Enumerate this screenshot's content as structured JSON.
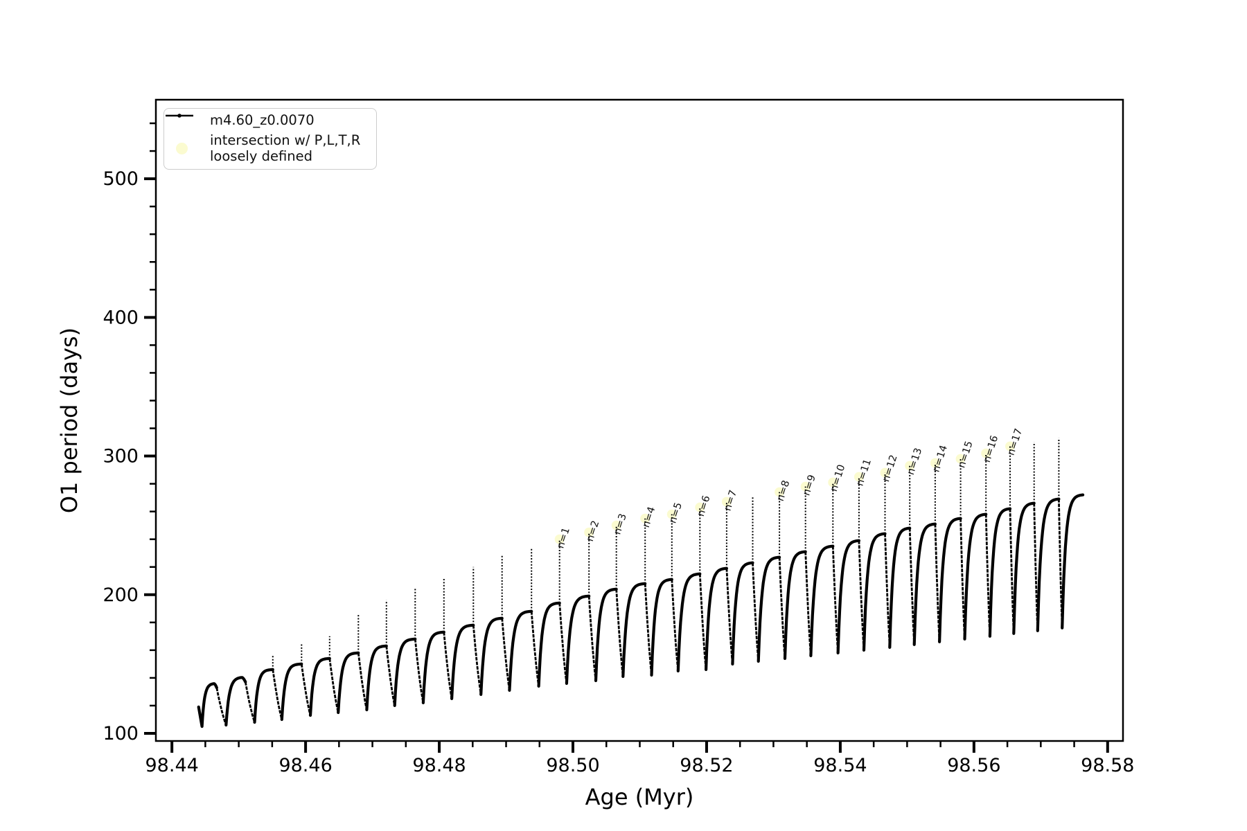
{
  "window": {
    "background": "#ffffff"
  },
  "legend": {
    "location": "upper left",
    "items": [
      {
        "marker": "line-with-dot-marker",
        "label": "m4.60_z0.0070"
      },
      {
        "marker": "pale-yellow-circle",
        "line1": "intersection w/ P,L,T,R",
        "line2": "loosely defined"
      }
    ]
  },
  "chart_data": {
    "type": "line",
    "title": "",
    "xlabel": "Age (Myr)",
    "ylabel": "O1 period (days)",
    "xlim": [
      98.4376,
      98.5823
    ],
    "ylim": [
      94.5,
      557
    ],
    "grid": false,
    "legend_position": "upper left",
    "colors": {
      "line": "#000000",
      "intersection_marker": "#fbfbd0",
      "annotation_text": "#111111"
    },
    "x_ticks": [
      {
        "v": 98.44,
        "label": "98.44"
      },
      {
        "v": 98.46,
        "label": "98.46"
      },
      {
        "v": 98.48,
        "label": "98.48"
      },
      {
        "v": 98.5,
        "label": "98.50"
      },
      {
        "v": 98.52,
        "label": "98.52"
      },
      {
        "v": 98.54,
        "label": "98.54"
      },
      {
        "v": 98.56,
        "label": "98.56"
      },
      {
        "v": 98.58,
        "label": "98.58"
      }
    ],
    "x_minor_step": 0.005,
    "y_ticks": [
      {
        "v": 100,
        "label": "100"
      },
      {
        "v": 200,
        "label": "200"
      },
      {
        "v": 300,
        "label": "300"
      },
      {
        "v": 400,
        "label": "400"
      },
      {
        "v": 500,
        "label": "500"
      }
    ],
    "y_minor_step": 20,
    "series_name": "m4.60_z0.0070",
    "start": {
      "age": 98.444,
      "period": 119,
      "dip_age": 98.4445,
      "dip_period": 105
    },
    "cycles": [
      {
        "end_age": 98.4467,
        "plateau": 136,
        "spike": null,
        "min_after": 106,
        "label": null
      },
      {
        "end_age": 98.451,
        "plateau": 140.5,
        "spike": null,
        "min_after": 108,
        "label": null
      },
      {
        "end_age": 98.4551,
        "plateau": 146,
        "spike": 156,
        "min_after": 110,
        "label": null
      },
      {
        "end_age": 98.4594,
        "plateau": 150,
        "spike": 165,
        "min_after": 113,
        "label": null
      },
      {
        "end_age": 98.4636,
        "plateau": 154,
        "spike": 170,
        "min_after": 115,
        "label": null
      },
      {
        "end_age": 98.4679,
        "plateau": 158,
        "spike": 186,
        "min_after": 117,
        "label": null
      },
      {
        "end_age": 98.4721,
        "plateau": 163,
        "spike": 196,
        "min_after": 120,
        "label": null
      },
      {
        "end_age": 98.4764,
        "plateau": 168,
        "spike": 205,
        "min_after": 122,
        "label": null
      },
      {
        "end_age": 98.4807,
        "plateau": 173,
        "spike": 212,
        "min_after": 125,
        "label": null
      },
      {
        "end_age": 98.4851,
        "plateau": 178,
        "spike": 220,
        "min_after": 128,
        "label": null
      },
      {
        "end_age": 98.4894,
        "plateau": 183,
        "spike": 228,
        "min_after": 131,
        "label": null
      },
      {
        "end_age": 98.4938,
        "plateau": 188,
        "spike": 233,
        "min_after": 134,
        "label": null
      },
      {
        "end_age": 98.498,
        "plateau": 194,
        "spike": 240,
        "min_after": 136,
        "label": "n=1"
      },
      {
        "end_age": 98.5024,
        "plateau": 199,
        "spike": 245,
        "min_after": 138,
        "label": "n=2"
      },
      {
        "end_age": 98.5065,
        "plateau": 204,
        "spike": 250,
        "min_after": 141,
        "label": "n=3"
      },
      {
        "end_age": 98.5108,
        "plateau": 208,
        "spike": 255,
        "min_after": 142,
        "label": "n=4"
      },
      {
        "end_age": 98.5148,
        "plateau": 211,
        "spike": 258,
        "min_after": 145,
        "label": "n=5"
      },
      {
        "end_age": 98.519,
        "plateau": 215,
        "spike": 263,
        "min_after": 146,
        "label": "n=6"
      },
      {
        "end_age": 98.523,
        "plateau": 219,
        "spike": 267,
        "min_after": 150,
        "label": "n=7"
      },
      {
        "end_age": 98.5269,
        "plateau": 223,
        "spike": 271,
        "min_after": 152,
        "label": null
      },
      {
        "end_age": 98.5309,
        "plateau": 227,
        "spike": 274,
        "min_after": 154,
        "label": "n=8"
      },
      {
        "end_age": 98.5348,
        "plateau": 231,
        "spike": 278,
        "min_after": 156,
        "label": "n=9"
      },
      {
        "end_age": 98.5389,
        "plateau": 235,
        "spike": 281,
        "min_after": 158,
        "label": "n=10"
      },
      {
        "end_age": 98.5428,
        "plateau": 239,
        "spike": 285,
        "min_after": 160,
        "label": "n=11"
      },
      {
        "end_age": 98.5467,
        "plateau": 244,
        "spike": 288,
        "min_after": 162,
        "label": "n=12"
      },
      {
        "end_age": 98.5504,
        "plateau": 248,
        "spike": 293,
        "min_after": 164,
        "label": "n=13"
      },
      {
        "end_age": 98.5542,
        "plateau": 251,
        "spike": 295,
        "min_after": 166,
        "label": "n=14"
      },
      {
        "end_age": 98.558,
        "plateau": 255,
        "spike": 298,
        "min_after": 168,
        "label": "n=15"
      },
      {
        "end_age": 98.5618,
        "plateau": 258,
        "spike": 302,
        "min_after": 170,
        "label": "n=16"
      },
      {
        "end_age": 98.5654,
        "plateau": 262,
        "spike": 307,
        "min_after": 172,
        "label": "n=17"
      },
      {
        "end_age": 98.569,
        "plateau": 266,
        "spike": 310,
        "min_after": 174,
        "label": null
      },
      {
        "end_age": 98.5727,
        "plateau": 269,
        "spike": 313,
        "min_after": 176,
        "label": null
      }
    ],
    "final": {
      "end_age": 98.5763,
      "plateau": 272
    }
  }
}
